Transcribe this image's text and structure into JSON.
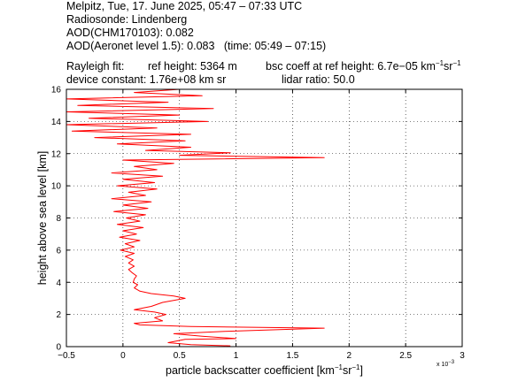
{
  "header": {
    "line1": "Melpitz, Tue, 17. June 2025, 05:47 – 07:33 UTC",
    "line2": "Radiosonde: Lindenberg",
    "line3": "AOD(CHM170103): 0.082",
    "line4": "AOD(Aeronet level 1.5): 0.083   (time: 05:49 – 07:15)",
    "rayleigh_label": "Rayleigh fit:",
    "ref_height": "ref height: 5364 m",
    "bsc_coeff_prefix": "bsc coeff at ref height: 6.7e−05 km",
    "bsc_sup1": "−1",
    "bsc_mid": "sr",
    "bsc_sup2": "−1",
    "device_constant": "device constant: 1.76e+08 km sr",
    "lidar_ratio": "lidar ratio: 50.0"
  },
  "colors": {
    "line": "#ff0000",
    "axes": "#000000",
    "grid": "#000000"
  },
  "chart_data": {
    "type": "line",
    "title": "",
    "xlabel_prefix": "particle backscatter coefficient [km",
    "xlabel_sup1": "−1",
    "xlabel_mid": "sr",
    "xlabel_sup2": "−1",
    "xlabel_suffix": "]",
    "ylabel": "height above sea level [km]",
    "x_multiplier": "x 10",
    "x_multiplier_exp": "−3",
    "xlim": [
      -0.5,
      3
    ],
    "ylim": [
      0,
      16
    ],
    "xticks": [
      "−0.5",
      "0",
      "0.5",
      "1",
      "1.5",
      "2",
      "2.5",
      "3"
    ],
    "xtick_values": [
      -0.5,
      0,
      0.5,
      1,
      1.5,
      2,
      2.5,
      3
    ],
    "yticks": [
      "0",
      "2",
      "4",
      "6",
      "8",
      "10",
      "12",
      "14",
      "16"
    ],
    "ytick_values": [
      0,
      2,
      4,
      6,
      8,
      10,
      12,
      14,
      16
    ],
    "grid": true,
    "legend": "none",
    "series": [
      {
        "color": "#ff0000",
        "points": [
          [
            0.95,
            0.05
          ],
          [
            0.6,
            0.12
          ],
          [
            0.4,
            0.25
          ],
          [
            0.55,
            0.45
          ],
          [
            1.0,
            0.5
          ],
          [
            0.7,
            0.65
          ],
          [
            0.45,
            0.8
          ],
          [
            0.9,
            0.95
          ],
          [
            1.78,
            1.15
          ],
          [
            0.6,
            1.25
          ],
          [
            0.15,
            1.35
          ],
          [
            0.1,
            1.45
          ],
          [
            0.35,
            1.6
          ],
          [
            0.28,
            1.8
          ],
          [
            0.38,
            2.0
          ],
          [
            0.28,
            2.15
          ],
          [
            0.1,
            2.3
          ],
          [
            0.25,
            2.5
          ],
          [
            0.35,
            2.75
          ],
          [
            0.55,
            3.0
          ],
          [
            0.45,
            3.15
          ],
          [
            0.25,
            3.3
          ],
          [
            0.15,
            3.45
          ],
          [
            0.1,
            3.65
          ],
          [
            0.13,
            3.85
          ],
          [
            0.09,
            4.0
          ],
          [
            0.1,
            4.2
          ],
          [
            0.12,
            4.4
          ],
          [
            0.08,
            4.6
          ],
          [
            0.05,
            4.8
          ],
          [
            0.1,
            5.0
          ],
          [
            0.05,
            5.2
          ],
          [
            0.09,
            5.4
          ],
          [
            0.02,
            5.6
          ],
          [
            0.1,
            5.8
          ],
          [
            -0.02,
            6.0
          ],
          [
            0.1,
            6.2
          ],
          [
            0.02,
            6.4
          ],
          [
            0.15,
            6.6
          ],
          [
            -0.03,
            6.8
          ],
          [
            0.12,
            7.0
          ],
          [
            0.0,
            7.2
          ],
          [
            0.18,
            7.4
          ],
          [
            -0.05,
            7.6
          ],
          [
            0.15,
            7.8
          ],
          [
            0.03,
            8.0
          ],
          [
            0.2,
            8.2
          ],
          [
            -0.08,
            8.4
          ],
          [
            0.22,
            8.6
          ],
          [
            0.0,
            8.8
          ],
          [
            0.25,
            9.0
          ],
          [
            -0.1,
            9.2
          ],
          [
            0.2,
            9.4
          ],
          [
            0.05,
            9.6
          ],
          [
            0.3,
            9.8
          ],
          [
            -0.05,
            10.0
          ],
          [
            0.28,
            10.2
          ],
          [
            0.0,
            10.4
          ],
          [
            0.35,
            10.6
          ],
          [
            -0.1,
            10.8
          ],
          [
            0.3,
            11.0
          ],
          [
            0.1,
            11.2
          ],
          [
            0.45,
            11.4
          ],
          [
            0.0,
            11.6
          ],
          [
            1.78,
            11.75
          ],
          [
            0.5,
            11.9
          ],
          [
            0.95,
            12.05
          ],
          [
            0.2,
            12.2
          ],
          [
            0.6,
            12.4
          ],
          [
            -0.05,
            12.6
          ],
          [
            0.55,
            12.8
          ],
          [
            -0.25,
            13.0
          ],
          [
            0.6,
            13.2
          ],
          [
            -0.45,
            13.4
          ],
          [
            0.3,
            13.6
          ],
          [
            -0.5,
            13.8
          ],
          [
            0.75,
            14.0
          ],
          [
            -0.3,
            14.2
          ],
          [
            0.5,
            14.4
          ],
          [
            -0.5,
            14.6
          ],
          [
            0.8,
            14.8
          ],
          [
            -0.4,
            15.0
          ],
          [
            0.4,
            15.2
          ],
          [
            -0.5,
            15.4
          ],
          [
            0.7,
            15.6
          ],
          [
            0.1,
            15.8
          ],
          [
            0.5,
            16.0
          ]
        ]
      }
    ]
  }
}
